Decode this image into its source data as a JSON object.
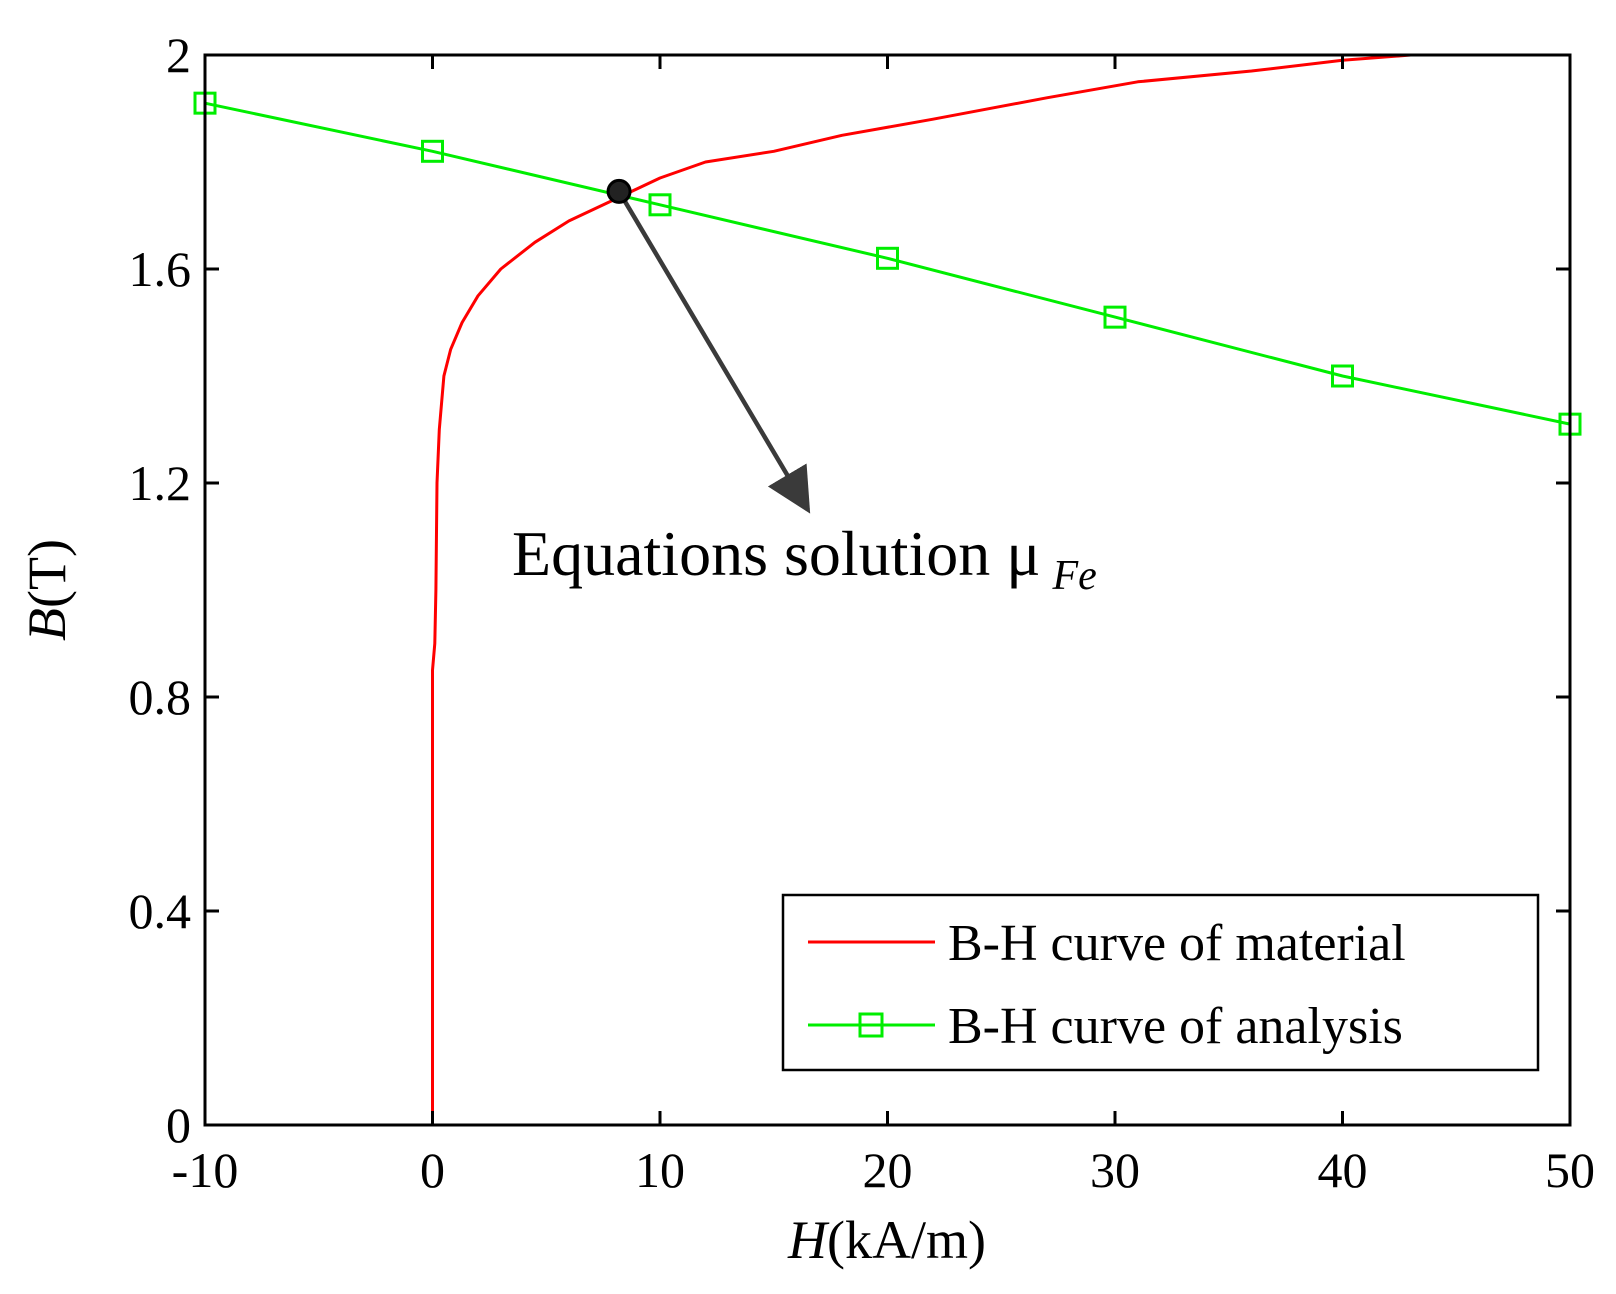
{
  "chart_data": {
    "type": "line",
    "xlabel_var": "H",
    "xlabel_unit": "(kA/m)",
    "ylabel_var": "B",
    "ylabel_unit": "(T)",
    "xlim": [
      -10,
      50
    ],
    "ylim": [
      0,
      2
    ],
    "x_ticks": [
      -10,
      0,
      10,
      20,
      30,
      40,
      50
    ],
    "x_tick_labels": [
      "-10",
      "0",
      "10",
      "20",
      "30",
      "40",
      "50"
    ],
    "y_ticks": [
      0,
      0.4,
      0.8,
      1.2,
      1.6,
      2
    ],
    "y_tick_labels": [
      "0",
      "0.4",
      "0.8",
      "1.2",
      "1.6",
      "2"
    ],
    "grid": false,
    "legend_position": "bottom-right",
    "series": [
      {
        "name": "B-H curve of material",
        "color": "#ff0000",
        "marker": "none",
        "x": [
          0,
          0,
          0.1,
          0.15,
          0.2,
          0.3,
          0.5,
          0.8,
          1.3,
          2,
          3,
          4.5,
          6,
          8,
          10,
          12,
          15,
          18,
          22,
          27,
          31,
          36,
          40,
          43
        ],
        "y": [
          0,
          0.85,
          0.9,
          1.0,
          1.2,
          1.3,
          1.4,
          1.45,
          1.5,
          1.55,
          1.6,
          1.65,
          1.69,
          1.73,
          1.77,
          1.8,
          1.82,
          1.85,
          1.88,
          1.92,
          1.95,
          1.97,
          1.99,
          2.0
        ]
      },
      {
        "name": "B-H curve of analysis",
        "color": "#00ee00",
        "marker": "square",
        "x": [
          -10,
          0,
          10,
          20,
          30,
          40,
          50
        ],
        "y": [
          1.91,
          1.82,
          1.72,
          1.62,
          1.51,
          1.4,
          1.31
        ]
      }
    ],
    "annotations": [
      {
        "text": "Equations solution  μ",
        "subscript": "Fe",
        "point": [
          8.2,
          1.745
        ],
        "arrow_to": [
          16.5,
          1.15
        ],
        "marker_color": "#222222"
      }
    ]
  }
}
